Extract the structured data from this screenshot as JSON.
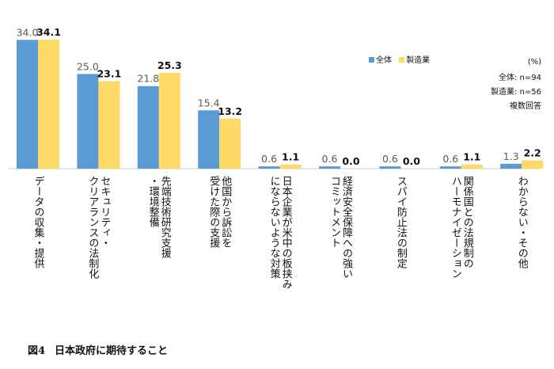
{
  "chart_data": {
    "type": "bar",
    "categories": [
      "データの収集・提供",
      "セキュリティ・クリアランスの法制化",
      "先端技術研究支援・環境整備",
      "他国から訴訟を受けた際の支援",
      "日本企業が米中の板挟みにならないような対策",
      "経済安全保障への強いコミットメント",
      "スパイ防止法の制定",
      "関係国との法規制のハーモナイゼーション",
      "わからない・その他"
    ],
    "category_lines": [
      [
        "データの収集・提供"
      ],
      [
        "セキュリティ・",
        "クリアランスの法制化"
      ],
      [
        "先端技術研究支援",
        "・環境整備"
      ],
      [
        "他国から訴訟を",
        "受けた際の支援"
      ],
      [
        "日本企業が米中の板挟み",
        "にならないような対策"
      ],
      [
        "経済安全保障への強い",
        "コミットメント"
      ],
      [
        "スパイ防止法の制定"
      ],
      [
        "関係国との法規制の",
        "ハーモナイゼーション"
      ],
      [
        "わからない・その他"
      ]
    ],
    "series": [
      {
        "name": "全体",
        "color": "#5B9BD5",
        "values": [
          34.0,
          25.0,
          21.8,
          15.4,
          0.6,
          0.6,
          0.6,
          0.6,
          1.3
        ],
        "labels": [
          "34.0",
          "25.0",
          "21.8",
          "15.4",
          "0.6",
          "0.6",
          "0.6",
          "0.6",
          "1.3"
        ]
      },
      {
        "name": "製造業",
        "color": "#FFD966",
        "values": [
          34.1,
          23.1,
          25.3,
          13.2,
          1.1,
          0.0,
          0.0,
          1.1,
          2.2
        ],
        "labels": [
          "34.1",
          "23.1",
          "25.3",
          "13.2",
          "1.1",
          "0.0",
          "0.0",
          "1.1",
          "2.2"
        ]
      }
    ],
    "ylim": [
      0,
      37
    ],
    "unit": "(%)",
    "notes": [
      "全体: n=94",
      "製造業: n=56",
      "複数回答"
    ],
    "legend_position": "top-right",
    "grid": false
  },
  "caption": {
    "number": "図4",
    "title": "日本政府に期待すること"
  }
}
